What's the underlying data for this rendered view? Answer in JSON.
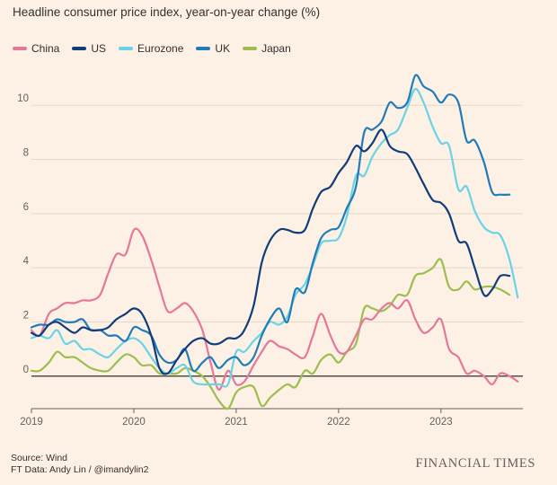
{
  "chart_data": {
    "type": "line",
    "title": "Headline consumer price index, year-on-year change (%)",
    "xlabel": "",
    "ylabel": "",
    "xlim": [
      2019.0,
      2023.8
    ],
    "ylim": [
      -1.2,
      11.4
    ],
    "yticks": [
      0,
      2,
      4,
      6,
      8,
      10
    ],
    "xticks": [
      "2019",
      "2020",
      "2021",
      "2022",
      "2023"
    ],
    "grid": true,
    "legend_position": "top-left",
    "series": [
      {
        "name": "China",
        "color": "#e5779b",
        "points": [
          [
            2019.0,
            1.7
          ],
          [
            2019.08,
            1.5
          ],
          [
            2019.17,
            2.3
          ],
          [
            2019.25,
            2.5
          ],
          [
            2019.33,
            2.7
          ],
          [
            2019.42,
            2.7
          ],
          [
            2019.5,
            2.8
          ],
          [
            2019.58,
            2.8
          ],
          [
            2019.67,
            3.0
          ],
          [
            2019.75,
            3.8
          ],
          [
            2019.83,
            4.5
          ],
          [
            2019.92,
            4.5
          ],
          [
            2020.0,
            5.4
          ],
          [
            2020.08,
            5.2
          ],
          [
            2020.17,
            4.3
          ],
          [
            2020.25,
            3.3
          ],
          [
            2020.33,
            2.4
          ],
          [
            2020.42,
            2.5
          ],
          [
            2020.5,
            2.7
          ],
          [
            2020.58,
            2.4
          ],
          [
            2020.67,
            1.7
          ],
          [
            2020.75,
            0.5
          ],
          [
            2020.83,
            -0.5
          ],
          [
            2020.92,
            0.2
          ],
          [
            2021.0,
            -0.3
          ],
          [
            2021.08,
            -0.2
          ],
          [
            2021.17,
            0.4
          ],
          [
            2021.25,
            0.9
          ],
          [
            2021.33,
            1.3
          ],
          [
            2021.42,
            1.1
          ],
          [
            2021.5,
            1.0
          ],
          [
            2021.58,
            0.8
          ],
          [
            2021.67,
            0.7
          ],
          [
            2021.75,
            1.5
          ],
          [
            2021.83,
            2.3
          ],
          [
            2021.92,
            1.5
          ],
          [
            2022.0,
            0.9
          ],
          [
            2022.08,
            0.9
          ],
          [
            2022.17,
            1.5
          ],
          [
            2022.25,
            2.1
          ],
          [
            2022.33,
            2.1
          ],
          [
            2022.42,
            2.5
          ],
          [
            2022.5,
            2.7
          ],
          [
            2022.58,
            2.5
          ],
          [
            2022.67,
            2.8
          ],
          [
            2022.75,
            2.1
          ],
          [
            2022.83,
            1.6
          ],
          [
            2022.92,
            1.8
          ],
          [
            2023.0,
            2.1
          ],
          [
            2023.08,
            1.0
          ],
          [
            2023.17,
            0.7
          ],
          [
            2023.25,
            0.1
          ],
          [
            2023.33,
            0.2
          ],
          [
            2023.42,
            0.0
          ],
          [
            2023.5,
            -0.3
          ],
          [
            2023.58,
            0.1
          ],
          [
            2023.67,
            0.0
          ],
          [
            2023.75,
            -0.2
          ]
        ]
      },
      {
        "name": "US",
        "color": "#0f3d7a",
        "points": [
          [
            2019.0,
            1.6
          ],
          [
            2019.08,
            1.5
          ],
          [
            2019.17,
            1.9
          ],
          [
            2019.25,
            2.0
          ],
          [
            2019.33,
            1.8
          ],
          [
            2019.42,
            1.6
          ],
          [
            2019.5,
            1.8
          ],
          [
            2019.58,
            1.7
          ],
          [
            2019.67,
            1.7
          ],
          [
            2019.75,
            1.8
          ],
          [
            2019.83,
            2.1
          ],
          [
            2019.92,
            2.3
          ],
          [
            2020.0,
            2.5
          ],
          [
            2020.08,
            2.3
          ],
          [
            2020.17,
            1.5
          ],
          [
            2020.25,
            0.3
          ],
          [
            2020.33,
            0.1
          ],
          [
            2020.42,
            0.6
          ],
          [
            2020.5,
            1.0
          ],
          [
            2020.58,
            1.3
          ],
          [
            2020.67,
            1.4
          ],
          [
            2020.75,
            1.2
          ],
          [
            2020.83,
            1.2
          ],
          [
            2020.92,
            1.4
          ],
          [
            2021.0,
            1.4
          ],
          [
            2021.08,
            1.7
          ],
          [
            2021.17,
            2.6
          ],
          [
            2021.25,
            4.2
          ],
          [
            2021.33,
            5.0
          ],
          [
            2021.42,
            5.4
          ],
          [
            2021.5,
            5.4
          ],
          [
            2021.58,
            5.3
          ],
          [
            2021.67,
            5.4
          ],
          [
            2021.75,
            6.2
          ],
          [
            2021.83,
            6.8
          ],
          [
            2021.92,
            7.0
          ],
          [
            2022.0,
            7.5
          ],
          [
            2022.08,
            7.9
          ],
          [
            2022.17,
            8.5
          ],
          [
            2022.25,
            8.3
          ],
          [
            2022.33,
            8.6
          ],
          [
            2022.42,
            9.1
          ],
          [
            2022.5,
            8.5
          ],
          [
            2022.58,
            8.3
          ],
          [
            2022.67,
            8.2
          ],
          [
            2022.75,
            7.7
          ],
          [
            2022.83,
            7.1
          ],
          [
            2022.92,
            6.5
          ],
          [
            2023.0,
            6.4
          ],
          [
            2023.08,
            6.0
          ],
          [
            2023.17,
            5.0
          ],
          [
            2023.25,
            4.9
          ],
          [
            2023.33,
            4.0
          ],
          [
            2023.42,
            3.0
          ],
          [
            2023.5,
            3.2
          ],
          [
            2023.58,
            3.7
          ],
          [
            2023.67,
            3.7
          ]
        ]
      },
      {
        "name": "Eurozone",
        "color": "#6ad3e6",
        "points": [
          [
            2019.0,
            1.4
          ],
          [
            2019.08,
            1.5
          ],
          [
            2019.17,
            1.4
          ],
          [
            2019.25,
            1.7
          ],
          [
            2019.33,
            1.2
          ],
          [
            2019.42,
            1.3
          ],
          [
            2019.5,
            1.0
          ],
          [
            2019.58,
            1.0
          ],
          [
            2019.67,
            0.8
          ],
          [
            2019.75,
            0.7
          ],
          [
            2019.83,
            1.0
          ],
          [
            2019.92,
            1.3
          ],
          [
            2020.0,
            1.4
          ],
          [
            2020.08,
            1.2
          ],
          [
            2020.17,
            0.7
          ],
          [
            2020.25,
            0.3
          ],
          [
            2020.33,
            0.1
          ],
          [
            2020.42,
            0.3
          ],
          [
            2020.5,
            0.4
          ],
          [
            2020.58,
            -0.2
          ],
          [
            2020.67,
            -0.3
          ],
          [
            2020.75,
            -0.3
          ],
          [
            2020.83,
            -0.3
          ],
          [
            2020.92,
            -0.3
          ],
          [
            2021.0,
            0.9
          ],
          [
            2021.08,
            0.9
          ],
          [
            2021.17,
            1.3
          ],
          [
            2021.25,
            1.6
          ],
          [
            2021.33,
            2.0
          ],
          [
            2021.42,
            1.9
          ],
          [
            2021.5,
            2.2
          ],
          [
            2021.58,
            3.0
          ],
          [
            2021.67,
            3.4
          ],
          [
            2021.75,
            4.1
          ],
          [
            2021.83,
            4.9
          ],
          [
            2021.92,
            5.0
          ],
          [
            2022.0,
            5.1
          ],
          [
            2022.08,
            5.9
          ],
          [
            2022.17,
            7.4
          ],
          [
            2022.25,
            7.4
          ],
          [
            2022.33,
            8.1
          ],
          [
            2022.42,
            8.6
          ],
          [
            2022.5,
            8.9
          ],
          [
            2022.58,
            9.1
          ],
          [
            2022.67,
            9.9
          ],
          [
            2022.75,
            10.6
          ],
          [
            2022.83,
            10.1
          ],
          [
            2022.92,
            9.2
          ],
          [
            2023.0,
            8.6
          ],
          [
            2023.08,
            8.5
          ],
          [
            2023.17,
            6.9
          ],
          [
            2023.25,
            7.0
          ],
          [
            2023.33,
            6.1
          ],
          [
            2023.42,
            5.5
          ],
          [
            2023.5,
            5.3
          ],
          [
            2023.58,
            5.2
          ],
          [
            2023.67,
            4.3
          ],
          [
            2023.75,
            2.9
          ]
        ]
      },
      {
        "name": "UK",
        "color": "#1f7cb8",
        "points": [
          [
            2019.0,
            1.8
          ],
          [
            2019.08,
            1.9
          ],
          [
            2019.17,
            1.9
          ],
          [
            2019.25,
            2.1
          ],
          [
            2019.33,
            2.0
          ],
          [
            2019.42,
            2.0
          ],
          [
            2019.5,
            2.1
          ],
          [
            2019.58,
            1.7
          ],
          [
            2019.67,
            1.7
          ],
          [
            2019.75,
            1.5
          ],
          [
            2019.83,
            1.5
          ],
          [
            2019.92,
            1.3
          ],
          [
            2020.0,
            1.8
          ],
          [
            2020.08,
            1.7
          ],
          [
            2020.17,
            1.5
          ],
          [
            2020.25,
            0.8
          ],
          [
            2020.33,
            0.5
          ],
          [
            2020.42,
            0.6
          ],
          [
            2020.5,
            1.0
          ],
          [
            2020.58,
            0.2
          ],
          [
            2020.67,
            0.5
          ],
          [
            2020.75,
            0.7
          ],
          [
            2020.83,
            0.3
          ],
          [
            2020.92,
            0.6
          ],
          [
            2021.0,
            0.7
          ],
          [
            2021.08,
            0.4
          ],
          [
            2021.17,
            0.7
          ],
          [
            2021.25,
            1.5
          ],
          [
            2021.33,
            2.1
          ],
          [
            2021.42,
            2.5
          ],
          [
            2021.5,
            2.0
          ],
          [
            2021.58,
            3.2
          ],
          [
            2021.67,
            3.1
          ],
          [
            2021.75,
            4.2
          ],
          [
            2021.83,
            5.1
          ],
          [
            2021.92,
            5.4
          ],
          [
            2022.0,
            5.5
          ],
          [
            2022.08,
            6.2
          ],
          [
            2022.17,
            7.0
          ],
          [
            2022.25,
            9.0
          ],
          [
            2022.33,
            9.1
          ],
          [
            2022.42,
            9.4
          ],
          [
            2022.5,
            10.1
          ],
          [
            2022.58,
            9.9
          ],
          [
            2022.67,
            10.1
          ],
          [
            2022.75,
            11.1
          ],
          [
            2022.83,
            10.7
          ],
          [
            2022.92,
            10.5
          ],
          [
            2023.0,
            10.1
          ],
          [
            2023.08,
            10.4
          ],
          [
            2023.17,
            10.1
          ],
          [
            2023.25,
            8.7
          ],
          [
            2023.33,
            8.7
          ],
          [
            2023.42,
            7.9
          ],
          [
            2023.5,
            6.8
          ],
          [
            2023.58,
            6.7
          ],
          [
            2023.67,
            6.7
          ]
        ]
      },
      {
        "name": "Japan",
        "color": "#9dbe4f",
        "points": [
          [
            2019.0,
            0.2
          ],
          [
            2019.08,
            0.2
          ],
          [
            2019.17,
            0.5
          ],
          [
            2019.25,
            0.9
          ],
          [
            2019.33,
            0.7
          ],
          [
            2019.42,
            0.7
          ],
          [
            2019.5,
            0.5
          ],
          [
            2019.58,
            0.3
          ],
          [
            2019.67,
            0.2
          ],
          [
            2019.75,
            0.2
          ],
          [
            2019.83,
            0.5
          ],
          [
            2019.92,
            0.8
          ],
          [
            2020.0,
            0.7
          ],
          [
            2020.08,
            0.4
          ],
          [
            2020.17,
            0.4
          ],
          [
            2020.25,
            0.1
          ],
          [
            2020.33,
            0.1
          ],
          [
            2020.42,
            0.1
          ],
          [
            2020.5,
            0.3
          ],
          [
            2020.58,
            0.2
          ],
          [
            2020.67,
            0.0
          ],
          [
            2020.75,
            -0.4
          ],
          [
            2020.83,
            -0.9
          ],
          [
            2020.92,
            -1.2
          ],
          [
            2021.0,
            -0.6
          ],
          [
            2021.08,
            -0.4
          ],
          [
            2021.17,
            -0.4
          ],
          [
            2021.25,
            -1.1
          ],
          [
            2021.33,
            -0.8
          ],
          [
            2021.42,
            -0.5
          ],
          [
            2021.5,
            -0.3
          ],
          [
            2021.58,
            -0.4
          ],
          [
            2021.67,
            0.2
          ],
          [
            2021.75,
            0.1
          ],
          [
            2021.83,
            0.6
          ],
          [
            2021.92,
            0.8
          ],
          [
            2022.0,
            0.5
          ],
          [
            2022.08,
            0.9
          ],
          [
            2022.17,
            1.2
          ],
          [
            2022.25,
            2.5
          ],
          [
            2022.33,
            2.5
          ],
          [
            2022.42,
            2.4
          ],
          [
            2022.5,
            2.6
          ],
          [
            2022.58,
            3.0
          ],
          [
            2022.67,
            3.0
          ],
          [
            2022.75,
            3.7
          ],
          [
            2022.83,
            3.8
          ],
          [
            2022.92,
            4.0
          ],
          [
            2023.0,
            4.3
          ],
          [
            2023.08,
            3.3
          ],
          [
            2023.17,
            3.2
          ],
          [
            2023.25,
            3.5
          ],
          [
            2023.33,
            3.2
          ],
          [
            2023.42,
            3.3
          ],
          [
            2023.5,
            3.3
          ],
          [
            2023.58,
            3.2
          ],
          [
            2023.67,
            3.0
          ]
        ]
      }
    ]
  },
  "footer": {
    "source": "Source: Wind",
    "credit": "FT Data: Andy Lin / @imandylin2",
    "brand": "FINANCIAL TIMES"
  }
}
